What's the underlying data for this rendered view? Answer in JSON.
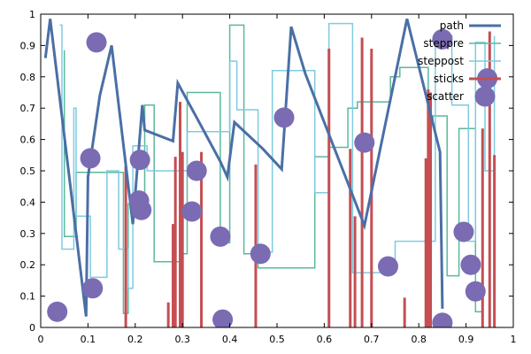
{
  "chart_data": {
    "type": "line",
    "title": "",
    "xlabel": "",
    "ylabel": "",
    "xlim": [
      0,
      1
    ],
    "ylim": [
      0,
      1
    ],
    "xticks": [
      "0",
      "0.1",
      "0.2",
      "0.3",
      "0.4",
      "0.5",
      "0.6",
      "0.7",
      "0.8",
      "0.9",
      "1"
    ],
    "yticks": [
      "0",
      "0.1",
      "0.2",
      "0.3",
      "0.4",
      "0.5",
      "0.6",
      "0.7",
      "0.8",
      "0.9",
      "1"
    ],
    "grid": false,
    "legend_position": "top-right",
    "series": [
      {
        "name": "path",
        "kind": "line",
        "color": "#4a6fa5",
        "x": [
          0.01,
          0.02,
          0.096,
          0.1,
          0.125,
          0.15,
          0.195,
          0.215,
          0.22,
          0.28,
          0.29,
          0.33,
          0.38,
          0.395,
          0.41,
          0.47,
          0.51,
          0.53,
          0.56,
          0.685,
          0.775,
          0.845,
          0.85
        ],
        "y": [
          0.86,
          0.985,
          0.035,
          0.48,
          0.74,
          0.9,
          0.33,
          0.71,
          0.63,
          0.595,
          0.78,
          0.67,
          0.53,
          0.48,
          0.655,
          0.57,
          0.505,
          0.96,
          0.81,
          0.325,
          0.985,
          0.56,
          0.06
        ]
      },
      {
        "name": "steppre",
        "kind": "step-pre",
        "color": "#5bb89c",
        "x": [
          0.05,
          0.075,
          0.175,
          0.185,
          0.22,
          0.24,
          0.3,
          0.31,
          0.38,
          0.4,
          0.43,
          0.46,
          0.58,
          0.61,
          0.65,
          0.67,
          0.74,
          0.76,
          0.82,
          0.83,
          0.86,
          0.885,
          0.92,
          0.935
        ],
        "y": [
          0.885,
          0.29,
          0.495,
          0.045,
          0.395,
          0.71,
          0.21,
          0.235,
          0.75,
          0.27,
          0.965,
          0.235,
          0.19,
          0.545,
          0.575,
          0.7,
          0.72,
          0.8,
          0.83,
          0.66,
          0.675,
          0.165,
          0.635,
          0.05
        ]
      },
      {
        "name": "steppost",
        "kind": "step-post",
        "color": "#7fcbe0",
        "x": [
          0.04,
          0.045,
          0.07,
          0.075,
          0.105,
          0.14,
          0.165,
          0.185,
          0.195,
          0.225,
          0.31,
          0.34,
          0.4,
          0.415,
          0.445,
          0.46,
          0.49,
          0.52,
          0.555,
          0.58,
          0.61,
          0.66,
          0.725,
          0.75,
          0.835,
          0.87,
          0.905,
          0.92,
          0.94,
          0.96
        ],
        "y": [
          0.965,
          0.25,
          0.7,
          0.355,
          0.16,
          0.5,
          0.25,
          0.125,
          0.58,
          0.5,
          0.625,
          0.625,
          0.85,
          0.695,
          0.695,
          0.24,
          0.82,
          0.82,
          0.82,
          0.43,
          0.97,
          0.175,
          0.175,
          0.275,
          0.93,
          0.71,
          0.275,
          0.91,
          0.5,
          0.93
        ]
      },
      {
        "name": "sticks",
        "kind": "sticks",
        "color": "#c44e52",
        "x": [
          0.18,
          0.27,
          0.28,
          0.285,
          0.295,
          0.3,
          0.34,
          0.455,
          0.61,
          0.655,
          0.665,
          0.68,
          0.7,
          0.77,
          0.815,
          0.82,
          0.825,
          0.935,
          0.95,
          0.96
        ],
        "y": [
          0.515,
          0.08,
          0.33,
          0.545,
          0.72,
          0.56,
          0.56,
          0.52,
          0.89,
          0.57,
          0.355,
          0.925,
          0.89,
          0.095,
          0.54,
          0.76,
          0.75,
          0.635,
          0.945,
          0.55
        ]
      },
      {
        "name": "scatter",
        "kind": "scatter",
        "color": "#7b6bb3",
        "x": [
          0.035,
          0.105,
          0.11,
          0.118,
          0.208,
          0.21,
          0.213,
          0.32,
          0.33,
          0.38,
          0.385,
          0.465,
          0.515,
          0.685,
          0.735,
          0.85,
          0.85,
          0.895,
          0.91,
          0.92,
          0.945
        ],
        "y": [
          0.05,
          0.54,
          0.125,
          0.91,
          0.405,
          0.535,
          0.375,
          0.37,
          0.5,
          0.29,
          0.025,
          0.235,
          0.67,
          0.59,
          0.195,
          0.92,
          0.015,
          0.305,
          0.2,
          0.115,
          0.795
        ]
      }
    ]
  }
}
